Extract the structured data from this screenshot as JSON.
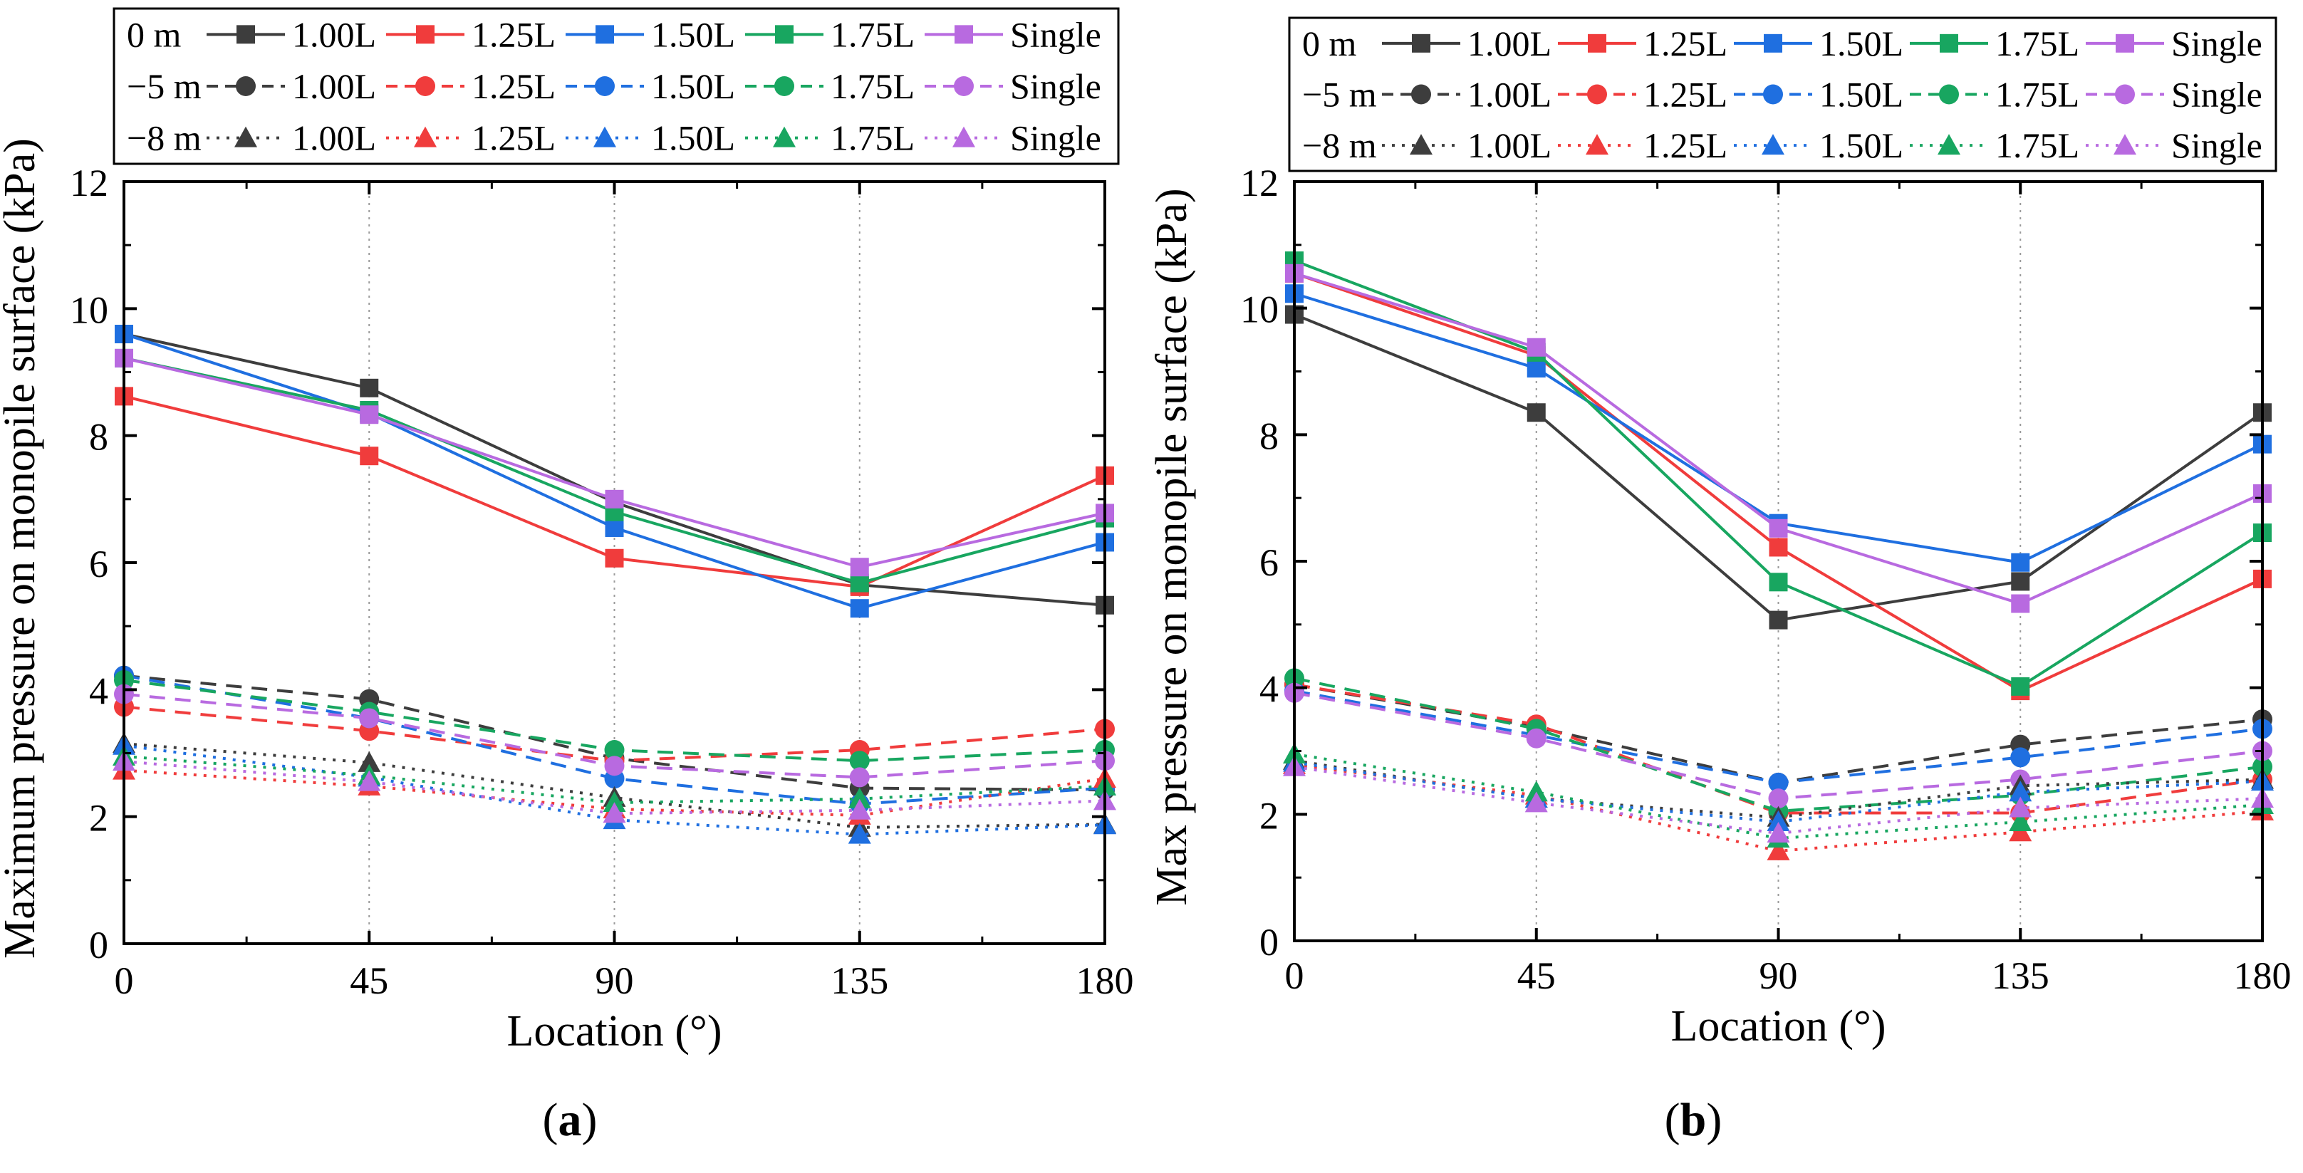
{
  "legend": {
    "depths": [
      "0 m",
      "−5 m",
      "−8 m"
    ],
    "series": [
      "1.00L",
      "1.25L",
      "1.50L",
      "1.75L",
      "Single"
    ]
  },
  "colors": {
    "1.00L": "#3d3d3d",
    "1.25L": "#f03c3c",
    "1.50L": "#1f6fe0",
    "1.75L": "#18a660",
    "Single": "#b86ae0"
  },
  "chart_data": [
    {
      "type": "line",
      "panel_label": "a",
      "xlabel": "Location (°)",
      "ylabel": "Maximum pressure on monopile surface (kPa)",
      "xlim": [
        0,
        180
      ],
      "ylim": [
        0,
        12
      ],
      "x": [
        0,
        45,
        90,
        135,
        180
      ],
      "xticks": [
        0,
        45,
        90,
        135,
        180
      ],
      "yticks": [
        0,
        2,
        4,
        6,
        8,
        10,
        12
      ],
      "grid": true,
      "series": [
        {
          "name": "1.00L",
          "depth": "0 m",
          "values": [
            9.6,
            8.75,
            6.95,
            5.65,
            5.33
          ]
        },
        {
          "name": "1.25L",
          "depth": "0 m",
          "values": [
            8.62,
            7.68,
            6.07,
            5.62,
            7.37
          ]
        },
        {
          "name": "1.50L",
          "depth": "0 m",
          "values": [
            9.6,
            8.35,
            6.55,
            5.28,
            6.32
          ]
        },
        {
          "name": "1.75L",
          "depth": "0 m",
          "values": [
            9.22,
            8.4,
            6.8,
            5.68,
            6.7
          ]
        },
        {
          "name": "Single",
          "depth": "0 m",
          "values": [
            9.22,
            8.33,
            7.0,
            5.93,
            6.78
          ]
        },
        {
          "name": "1.00L",
          "depth": "-5 m",
          "values": [
            4.22,
            3.85,
            2.92,
            2.45,
            2.42
          ]
        },
        {
          "name": "1.25L",
          "depth": "-5 m",
          "values": [
            3.73,
            3.35,
            2.88,
            3.05,
            3.38
          ]
        },
        {
          "name": "1.50L",
          "depth": "-5 m",
          "values": [
            4.22,
            3.55,
            2.6,
            2.2,
            2.45
          ]
        },
        {
          "name": "1.75L",
          "depth": "-5 m",
          "values": [
            4.15,
            3.65,
            3.05,
            2.88,
            3.05
          ]
        },
        {
          "name": "Single",
          "depth": "-5 m",
          "values": [
            3.93,
            3.55,
            2.8,
            2.62,
            2.88
          ]
        },
        {
          "name": "1.00L",
          "depth": "-8 m",
          "values": [
            3.15,
            2.85,
            2.3,
            1.83,
            1.88
          ]
        },
        {
          "name": "1.25L",
          "depth": "-8 m",
          "values": [
            2.73,
            2.48,
            2.12,
            2.02,
            2.6
          ]
        },
        {
          "name": "1.50L",
          "depth": "-8 m",
          "values": [
            3.12,
            2.62,
            1.95,
            1.72,
            1.87
          ]
        },
        {
          "name": "1.75L",
          "depth": "-8 m",
          "values": [
            2.95,
            2.65,
            2.22,
            2.28,
            2.48
          ]
        },
        {
          "name": "Single",
          "depth": "-8 m",
          "values": [
            2.87,
            2.55,
            2.05,
            2.1,
            2.25
          ]
        }
      ]
    },
    {
      "type": "line",
      "panel_label": "b",
      "xlabel": "Location (°)",
      "ylabel": "Max pressure on monopile surface (kPa)",
      "xlim": [
        0,
        180
      ],
      "ylim": [
        0,
        12
      ],
      "x": [
        0,
        45,
        90,
        135,
        180
      ],
      "xticks": [
        0,
        45,
        90,
        135,
        180
      ],
      "yticks": [
        0,
        2,
        4,
        6,
        8,
        10,
        12
      ],
      "grid": true,
      "series": [
        {
          "name": "1.00L",
          "depth": "0 m",
          "values": [
            9.9,
            8.35,
            5.07,
            5.68,
            8.35
          ]
        },
        {
          "name": "1.25L",
          "depth": "0 m",
          "values": [
            10.55,
            9.25,
            6.22,
            3.95,
            5.72
          ]
        },
        {
          "name": "1.50L",
          "depth": "0 m",
          "values": [
            10.23,
            9.05,
            6.6,
            5.98,
            7.85
          ]
        },
        {
          "name": "1.75L",
          "depth": "0 m",
          "values": [
            10.75,
            9.3,
            5.67,
            4.02,
            6.45
          ]
        },
        {
          "name": "Single",
          "depth": "0 m",
          "values": [
            10.55,
            9.38,
            6.52,
            5.33,
            7.07
          ]
        },
        {
          "name": "1.00L",
          "depth": "-5 m",
          "values": [
            4.05,
            3.38,
            2.5,
            3.1,
            3.5
          ]
        },
        {
          "name": "1.25L",
          "depth": "-5 m",
          "values": [
            4.05,
            3.42,
            2.02,
            2.02,
            2.55
          ]
        },
        {
          "name": "1.50L",
          "depth": "-5 m",
          "values": [
            3.95,
            3.25,
            2.5,
            2.9,
            3.35
          ]
        },
        {
          "name": "1.75L",
          "depth": "-5 m",
          "values": [
            4.15,
            3.35,
            2.05,
            2.3,
            2.75
          ]
        },
        {
          "name": "Single",
          "depth": "-5 m",
          "values": [
            3.92,
            3.2,
            2.25,
            2.55,
            3.0
          ]
        },
        {
          "name": "1.00L",
          "depth": "-8 m",
          "values": [
            2.85,
            2.25,
            1.95,
            2.45,
            2.55
          ]
        },
        {
          "name": "1.25L",
          "depth": "-8 m",
          "values": [
            2.78,
            2.3,
            1.42,
            1.72,
            2.05
          ]
        },
        {
          "name": "1.50L",
          "depth": "-8 m",
          "values": [
            2.82,
            2.25,
            1.88,
            2.35,
            2.52
          ]
        },
        {
          "name": "1.75L",
          "depth": "-8 m",
          "values": [
            2.95,
            2.35,
            1.62,
            1.88,
            2.15
          ]
        },
        {
          "name": "Single",
          "depth": "-8 m",
          "values": [
            2.75,
            2.18,
            1.7,
            2.1,
            2.25
          ]
        }
      ]
    }
  ]
}
